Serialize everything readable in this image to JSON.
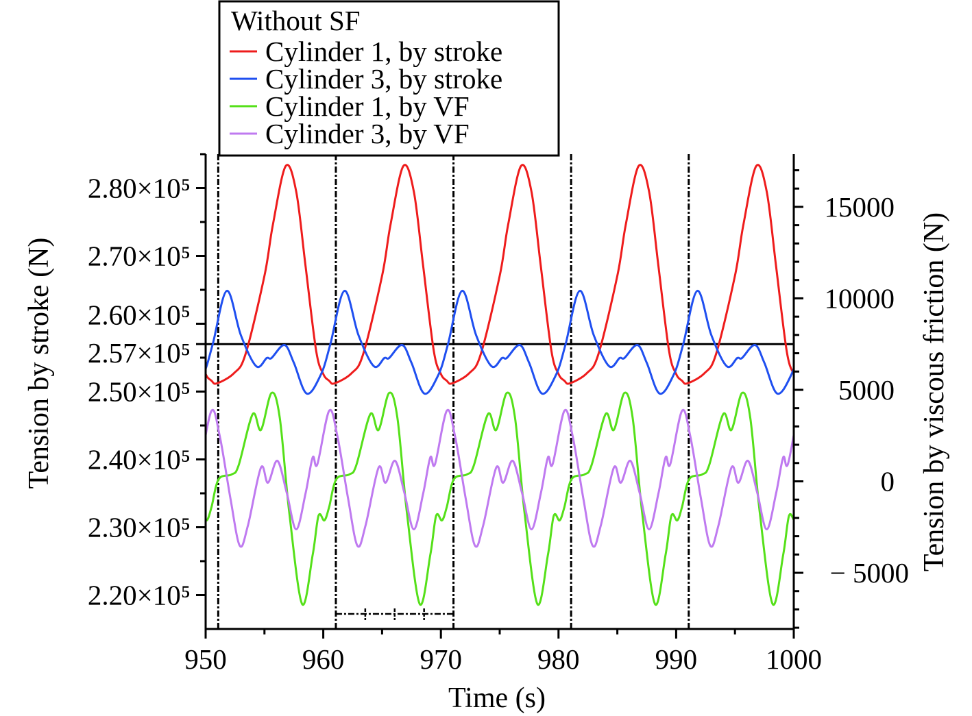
{
  "chart_data": {
    "type": "line",
    "title": "",
    "xlabel": "Time (s)",
    "ylabel_left": "Tension by stroke (N)",
    "ylabel_right": "Tension by viscous friction (N)",
    "xlim": [
      950,
      1000
    ],
    "ylim_left": [
      215000,
      285000
    ],
    "ylim_right": [
      -8070,
      17880
    ],
    "x_ticks": [
      950,
      960,
      970,
      980,
      990,
      1000
    ],
    "x_tick_labels": [
      "950",
      "960",
      "970",
      "980",
      "990",
      "1000"
    ],
    "left_ticks": [
      220000,
      230000,
      240000,
      250000,
      257000,
      260000,
      270000,
      280000
    ],
    "left_tick_labels": [
      "2.20×10⁵",
      "2.30×10⁵",
      "2.40×10⁵",
      "2.50×10⁵",
      "2.57×10⁵",
      "2.60×10⁵",
      "2.70×10⁵",
      "2.80×10⁵"
    ],
    "right_ticks": [
      -5000,
      0,
      5000,
      10000,
      15000
    ],
    "right_tick_labels": [
      "− 5000",
      "0",
      "5000",
      "10000",
      "15000"
    ],
    "reference_line_left": 257000,
    "vertical_markers_s": [
      951.07,
      961.07,
      971.07,
      981.07,
      991.07
    ],
    "period_bar": {
      "from": 961.07,
      "to": 971.07,
      "divisions": 4
    },
    "legend": {
      "title": "Without SF",
      "placement": "top"
    },
    "period_s": 10,
    "series": [
      {
        "name": "Cylinder 1, by stroke",
        "axis": "left",
        "color": "#ee1c1c",
        "x_period": [
          960.95,
          962.4,
          963.4,
          965.0,
          965.7,
          966.8,
          967.7,
          968.5,
          969.4,
          970.0,
          970.5
        ],
        "y_period": [
          251200,
          252700,
          255560,
          267070,
          274440,
          283230,
          279490,
          268380,
          255960,
          252600,
          251600
        ]
      },
      {
        "name": "Cylinder 3, by stroke",
        "axis": "left",
        "color": "#1f4ff0",
        "x_period": [
          961.8,
          963.0,
          964.3,
          965.2,
          965.6,
          966.7,
          967.5,
          968.6,
          969.8,
          970.6
        ],
        "y_period": [
          264850,
          258280,
          253740,
          254950,
          254950,
          256870,
          254240,
          249700,
          252530,
          256970
        ]
      },
      {
        "name": "Cylinder 1, by VF",
        "axis": "right",
        "color": "#55e019",
        "x_period": [
          960.5,
          961.1,
          962.2,
          962.8,
          964.0,
          964.7,
          965.6,
          966.3,
          967.1,
          968.2,
          969.1,
          969.6,
          970.1
        ],
        "y_period": [
          -1400,
          112,
          375,
          861,
          3670,
          2809,
          4831,
          3483,
          -1648,
          -6704,
          -4007,
          -1873,
          -2135
        ]
      },
      {
        "name": "Cylinder 3, by VF",
        "axis": "right",
        "color": "#bf7af0",
        "x_period": [
          960.5,
          961.2,
          962.1,
          962.9,
          963.6,
          964.7,
          965.3,
          966.1,
          966.9,
          967.7,
          968.5,
          969.1,
          969.5
        ],
        "y_period": [
          3857,
          2472,
          -899,
          -3520,
          -2397,
          749,
          -75,
          1124,
          -637,
          -2622,
          -637,
          1311,
          936
        ]
      }
    ]
  }
}
